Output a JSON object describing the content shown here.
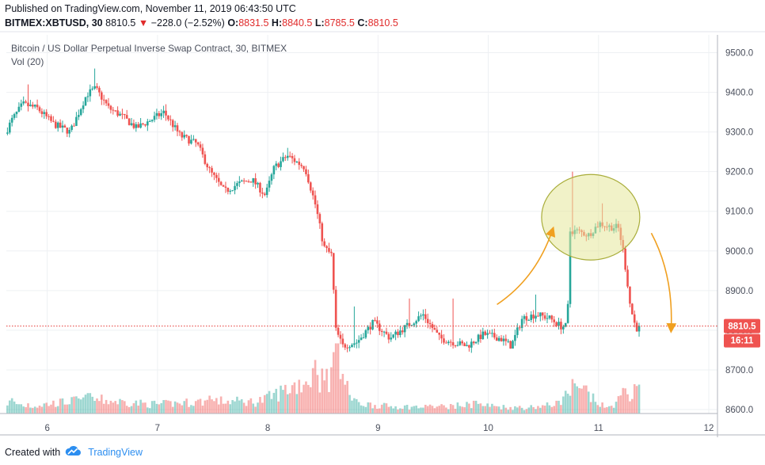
{
  "header": {
    "published": "Published on TradingView.com, November 11, 2019 06:43:50 UTC",
    "symbol": "BITMEX:XBTUSD, 30",
    "last": "8810.5",
    "change": "−228.0 (−2.52%)",
    "open_label": "O:",
    "open": "8831.5",
    "high_label": "H:",
    "high": "8840.5",
    "low_label": "L:",
    "low": "8785.5",
    "close_label": "C:",
    "close": "8810.5"
  },
  "legend": {
    "symbol_description": "Bitcoin / US Dollar Perpetual Inverse Swap Contract, 30, BITMEX",
    "volume": "Vol (20)"
  },
  "price_badge": {
    "price": "8810.5",
    "countdown": "16:11"
  },
  "footer": {
    "created_with": "Created with",
    "brand": "TradingView"
  },
  "colors": {
    "up": "#26a69a",
    "down": "#ef5350",
    "annotation": "#f0a020",
    "highlight_fill": "#e6e89a",
    "highlight_stroke": "#a9ad3a",
    "price_line": "#e53935"
  },
  "chart_data": {
    "type": "candlestick",
    "title": "Bitcoin / US Dollar Perpetual Inverse Swap Contract, 30, BITMEX",
    "x_tick_labels": [
      "6",
      "7",
      "8",
      "9",
      "10",
      "11",
      "12"
    ],
    "x_ticks_day": [
      6,
      7,
      8,
      9,
      10,
      11,
      12
    ],
    "xlim_day": [
      5.55,
      12.0
    ],
    "y_tick_labels": [
      "8600.0",
      "8700.0",
      "8800.0",
      "8900.0",
      "9000.0",
      "9100.0",
      "9200.0",
      "9300.0",
      "9400.0",
      "9500.0"
    ],
    "y_ticks": [
      8600,
      8700,
      8800,
      8900,
      9000,
      9100,
      9200,
      9300,
      9400,
      9500
    ],
    "ylim": [
      8590,
      9545
    ],
    "grid": true,
    "last_price": 8810.5,
    "close_series": {
      "day": [
        5.55,
        5.62,
        5.72,
        5.85,
        6.0,
        6.15,
        6.3,
        6.38,
        6.5,
        6.62,
        6.75,
        6.88,
        7.0,
        7.15,
        7.3,
        7.42,
        7.55,
        7.68,
        7.8,
        7.92,
        8.0,
        8.12,
        8.28,
        8.38,
        8.45,
        8.52,
        8.56,
        8.62,
        8.75,
        8.9,
        9.05,
        9.2,
        9.35,
        9.5,
        9.62,
        9.75,
        9.9,
        10.05,
        10.15,
        10.25,
        10.38,
        10.5,
        10.6,
        10.66,
        10.68,
        10.75,
        10.85,
        10.95,
        11.05,
        11.12,
        11.16,
        11.2,
        11.23,
        11.28
      ],
      "price": [
        9290,
        9330,
        9370,
        9360,
        9320,
        9300,
        9395,
        9410,
        9360,
        9340,
        9310,
        9330,
        9350,
        9290,
        9270,
        9200,
        9150,
        9170,
        9180,
        9140,
        9210,
        9240,
        9210,
        9110,
        9010,
        8990,
        8800,
        8760,
        8770,
        8820,
        8780,
        8810,
        8840,
        8780,
        8770,
        8760,
        8790,
        8780,
        8760,
        8830,
        8840,
        8830,
        8810,
        8810,
        9050,
        9050,
        9040,
        9070,
        9060,
        9060,
        9010,
        8930,
        8860,
        8805
      ]
    },
    "high_series": {
      "day": [
        5.75,
        6.35,
        7.0,
        8.1,
        8.42,
        8.7,
        9.2,
        9.6,
        10.35,
        10.68,
        10.95
      ],
      "price": [
        9420,
        9460,
        9370,
        9260,
        9050,
        8860,
        8880,
        8880,
        8890,
        9200,
        9120
      ]
    },
    "volume_series": {
      "day": [
        5.6,
        5.75,
        6.3,
        6.9,
        7.4,
        7.85,
        8.35,
        8.45,
        8.55,
        8.7,
        9.0,
        9.4,
        9.8,
        10.2,
        10.55,
        10.68,
        10.8,
        11.0,
        11.15,
        11.25
      ],
      "relative": [
        0.12,
        0.08,
        0.16,
        0.1,
        0.14,
        0.13,
        0.42,
        0.35,
        0.55,
        0.12,
        0.08,
        0.07,
        0.1,
        0.06,
        0.1,
        0.27,
        0.22,
        0.05,
        0.2,
        0.23
      ]
    }
  }
}
